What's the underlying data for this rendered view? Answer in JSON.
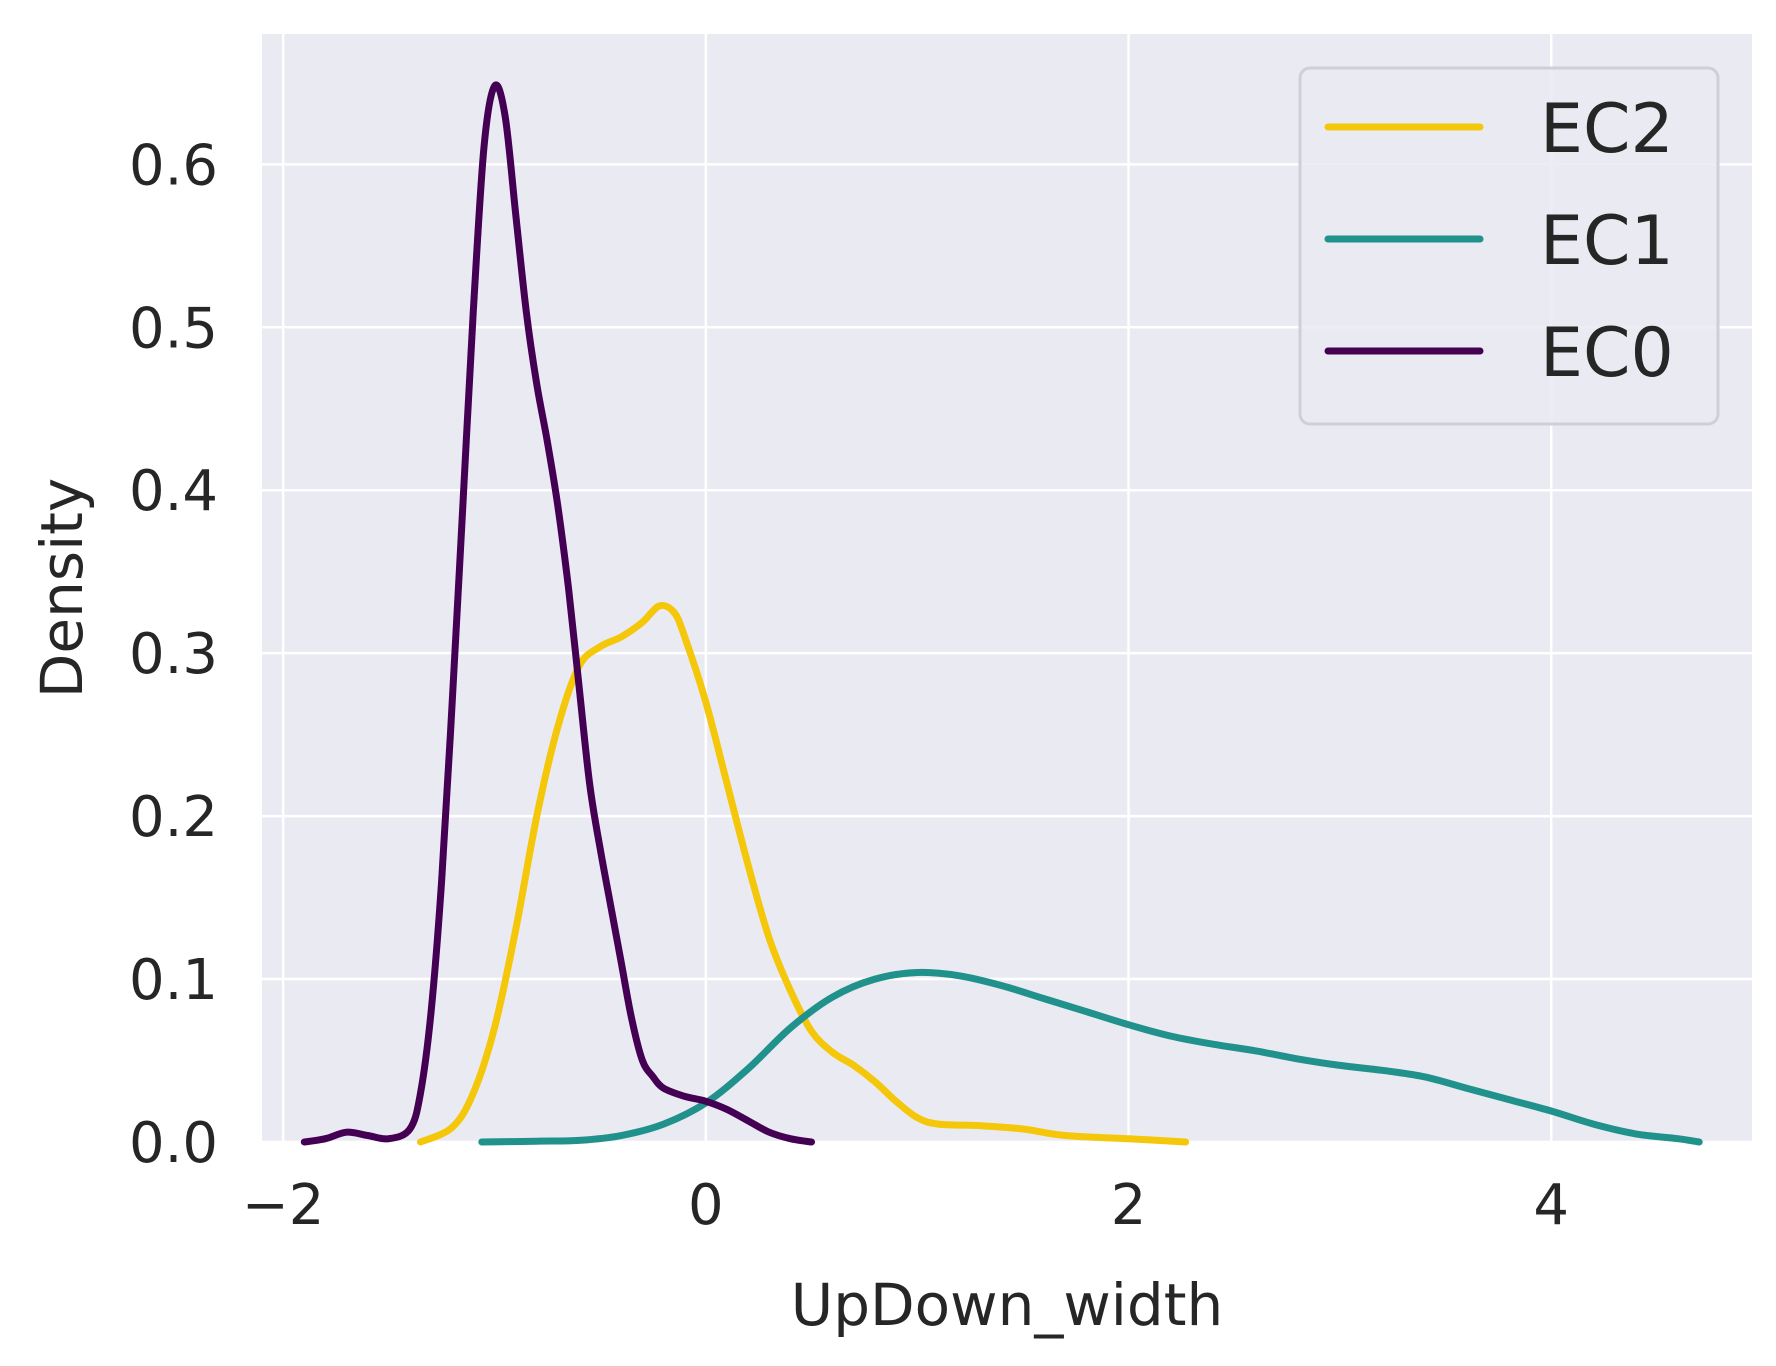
{
  "chart_data": {
    "type": "line",
    "title": "",
    "xlabel": "UpDown_width",
    "ylabel": "Density",
    "xlim": [
      -2.1,
      4.95
    ],
    "ylim": [
      0.0,
      0.68
    ],
    "xticks": [
      -2,
      0,
      2,
      4
    ],
    "xtick_labels": [
      "−2",
      "0",
      "2",
      "4"
    ],
    "yticks": [
      0.0,
      0.1,
      0.2,
      0.3,
      0.4,
      0.5,
      0.6
    ],
    "ytick_labels": [
      "0.0",
      "0.1",
      "0.2",
      "0.3",
      "0.4",
      "0.5",
      "0.6"
    ],
    "grid": true,
    "legend_position": "top-right",
    "background_color": "#EAEAF2",
    "series": [
      {
        "name": "EC2",
        "color": "#F5C70A",
        "points": [
          [
            -1.35,
            0.0
          ],
          [
            -1.2,
            0.009
          ],
          [
            -1.1,
            0.03
          ],
          [
            -1.0,
            0.07
          ],
          [
            -0.9,
            0.13
          ],
          [
            -0.8,
            0.2
          ],
          [
            -0.7,
            0.255
          ],
          [
            -0.6,
            0.292
          ],
          [
            -0.5,
            0.304
          ],
          [
            -0.4,
            0.31
          ],
          [
            -0.3,
            0.319
          ],
          [
            -0.22,
            0.329
          ],
          [
            -0.15,
            0.325
          ],
          [
            -0.1,
            0.31
          ],
          [
            0.0,
            0.27
          ],
          [
            0.1,
            0.22
          ],
          [
            0.2,
            0.17
          ],
          [
            0.3,
            0.125
          ],
          [
            0.4,
            0.093
          ],
          [
            0.5,
            0.068
          ],
          [
            0.6,
            0.055
          ],
          [
            0.7,
            0.047
          ],
          [
            0.8,
            0.037
          ],
          [
            0.9,
            0.025
          ],
          [
            1.0,
            0.015
          ],
          [
            1.1,
            0.011
          ],
          [
            1.3,
            0.01
          ],
          [
            1.5,
            0.008
          ],
          [
            1.7,
            0.004
          ],
          [
            2.0,
            0.002
          ],
          [
            2.27,
            0.0
          ]
        ]
      },
      {
        "name": "EC1",
        "color": "#21918C",
        "points": [
          [
            -1.06,
            0.0
          ],
          [
            -0.8,
            0.0005
          ],
          [
            -0.6,
            0.001
          ],
          [
            -0.4,
            0.004
          ],
          [
            -0.2,
            0.011
          ],
          [
            0.0,
            0.024
          ],
          [
            0.2,
            0.045
          ],
          [
            0.4,
            0.07
          ],
          [
            0.6,
            0.089
          ],
          [
            0.8,
            0.1
          ],
          [
            1.0,
            0.104
          ],
          [
            1.2,
            0.102
          ],
          [
            1.4,
            0.096
          ],
          [
            1.6,
            0.088
          ],
          [
            1.8,
            0.08
          ],
          [
            2.0,
            0.072
          ],
          [
            2.2,
            0.065
          ],
          [
            2.4,
            0.06
          ],
          [
            2.6,
            0.056
          ],
          [
            2.8,
            0.051
          ],
          [
            3.0,
            0.047
          ],
          [
            3.2,
            0.044
          ],
          [
            3.4,
            0.04
          ],
          [
            3.6,
            0.033
          ],
          [
            3.8,
            0.026
          ],
          [
            4.0,
            0.019
          ],
          [
            4.2,
            0.011
          ],
          [
            4.4,
            0.005
          ],
          [
            4.6,
            0.002
          ],
          [
            4.7,
            0.0
          ]
        ]
      },
      {
        "name": "EC0",
        "color": "#440154",
        "points": [
          [
            -1.9,
            0.0
          ],
          [
            -1.8,
            0.002
          ],
          [
            -1.7,
            0.006
          ],
          [
            -1.6,
            0.004
          ],
          [
            -1.5,
            0.002
          ],
          [
            -1.4,
            0.008
          ],
          [
            -1.35,
            0.03
          ],
          [
            -1.3,
            0.08
          ],
          [
            -1.25,
            0.16
          ],
          [
            -1.2,
            0.27
          ],
          [
            -1.15,
            0.39
          ],
          [
            -1.1,
            0.51
          ],
          [
            -1.05,
            0.61
          ],
          [
            -1.0,
            0.648
          ],
          [
            -0.95,
            0.63
          ],
          [
            -0.9,
            0.57
          ],
          [
            -0.85,
            0.51
          ],
          [
            -0.8,
            0.465
          ],
          [
            -0.75,
            0.43
          ],
          [
            -0.7,
            0.39
          ],
          [
            -0.65,
            0.34
          ],
          [
            -0.6,
            0.28
          ],
          [
            -0.55,
            0.22
          ],
          [
            -0.5,
            0.18
          ],
          [
            -0.45,
            0.145
          ],
          [
            -0.4,
            0.11
          ],
          [
            -0.35,
            0.075
          ],
          [
            -0.3,
            0.05
          ],
          [
            -0.25,
            0.04
          ],
          [
            -0.2,
            0.033
          ],
          [
            -0.1,
            0.028
          ],
          [
            0.0,
            0.025
          ],
          [
            0.1,
            0.02
          ],
          [
            0.2,
            0.013
          ],
          [
            0.3,
            0.006
          ],
          [
            0.4,
            0.002
          ],
          [
            0.5,
            0.0
          ]
        ]
      }
    ],
    "legend_order": [
      "EC2",
      "EC1",
      "EC0"
    ]
  }
}
